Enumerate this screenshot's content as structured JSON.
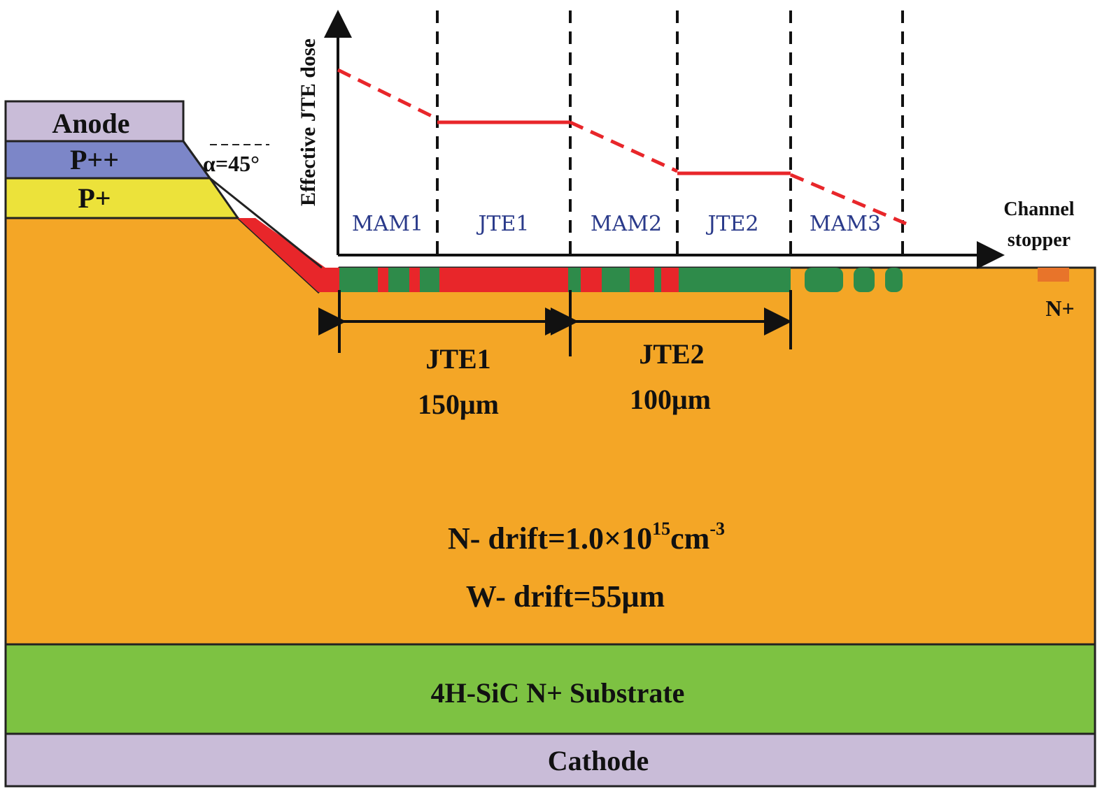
{
  "layers": {
    "anode": "Anode",
    "p_plus_plus": "P++",
    "p_plus": "P+",
    "angle": "α=45°",
    "substrate": "4H-SiC N+ Substrate",
    "cathode": "Cathode",
    "n_plus": "N+"
  },
  "dose_plot": {
    "y_axis_label": "Effective JTE dose",
    "regions": [
      "MAM1",
      "JTE1",
      "MAM2",
      "JTE2",
      "MAM3"
    ],
    "x_axis_label": [
      "Channel",
      "stopper"
    ]
  },
  "dimensions": [
    {
      "name": "JTE1",
      "length": "150μm"
    },
    {
      "name": "JTE2",
      "length": "100μm"
    }
  ],
  "drift": {
    "doping_prefix": "N- drift=1.0×10",
    "doping_exponent": "15",
    "doping_unit": "cm",
    "doping_unit_exponent": "-3",
    "width": "W- drift=55μm"
  }
}
